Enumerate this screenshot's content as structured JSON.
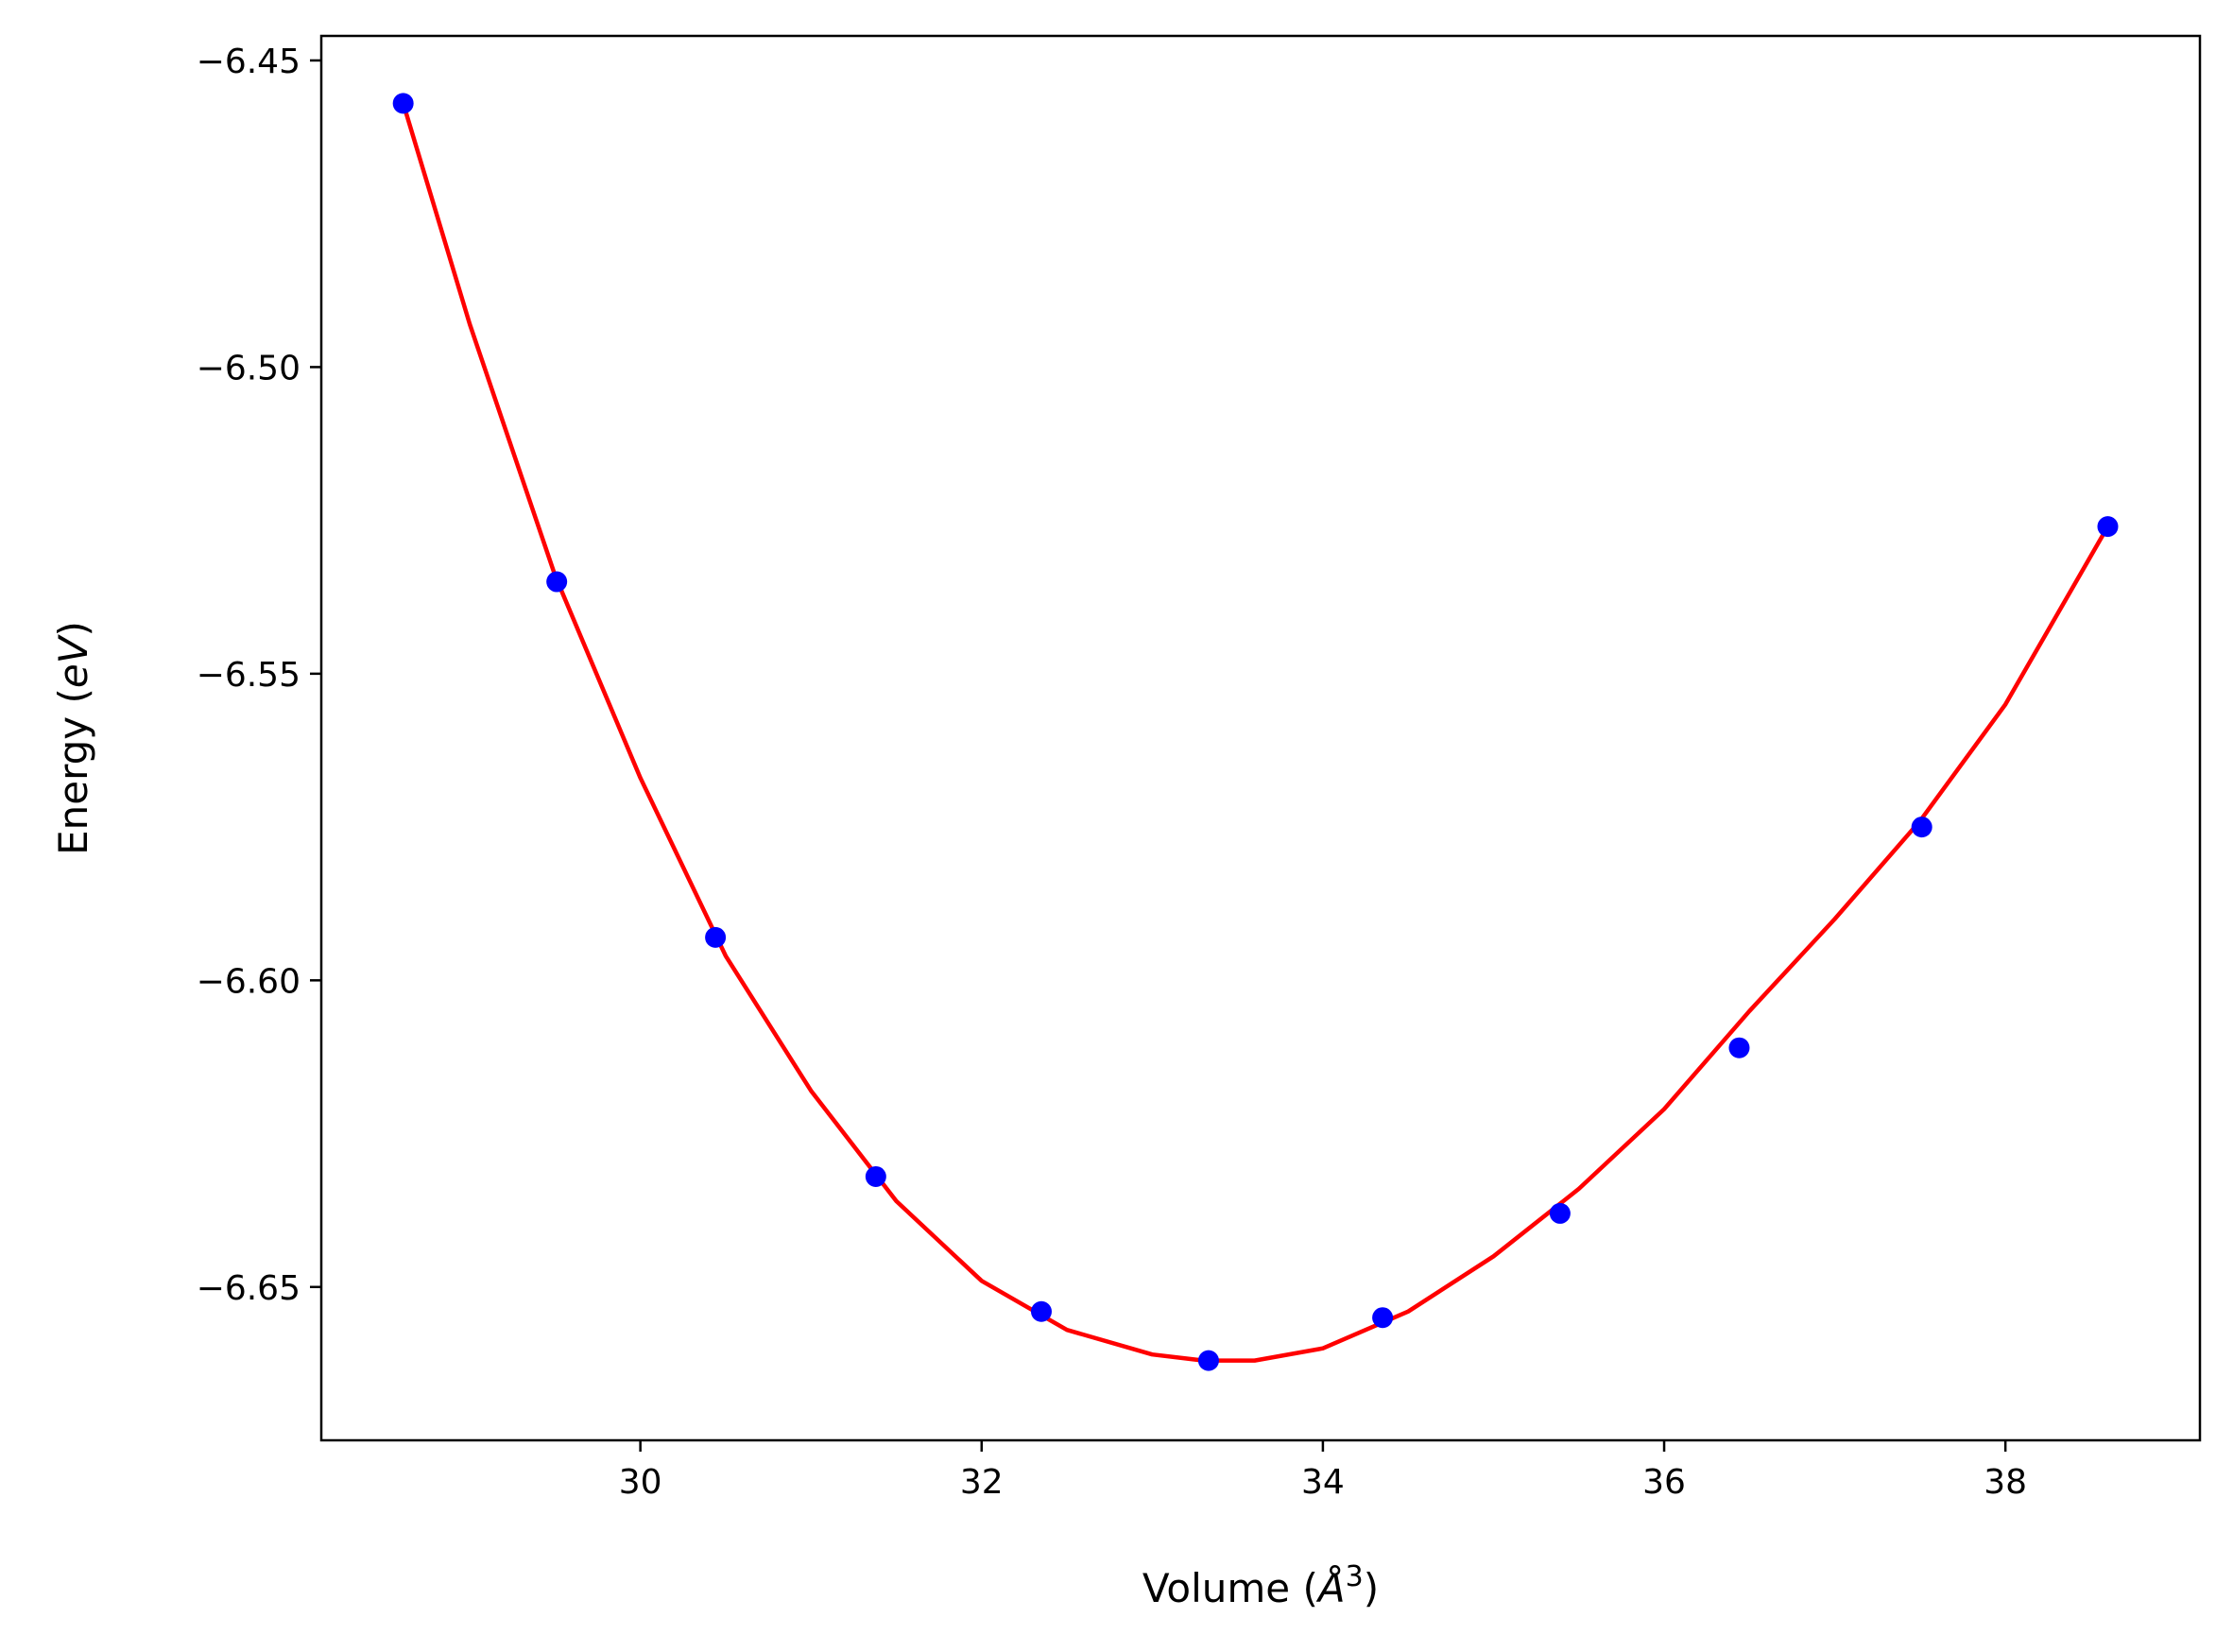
{
  "chart_data": {
    "type": "scatter",
    "title": "",
    "xlabel": {
      "prefix": "Volume (",
      "symbol": "Å",
      "sup": "3",
      "suffix": ")"
    },
    "ylabel": {
      "prefix": "Energy (",
      "symbol": "eV",
      "suffix": ")"
    },
    "xlim": [
      28.13,
      39.14
    ],
    "ylim": [
      -6.675,
      -6.446
    ],
    "xticks": [
      30,
      32,
      34,
      36,
      38
    ],
    "xtick_labels": [
      "30",
      "32",
      "34",
      "36",
      "38"
    ],
    "yticks": [
      -6.45,
      -6.5,
      -6.55,
      -6.6,
      -6.65
    ],
    "ytick_labels": [
      "−6.45",
      "−6.50",
      "−6.55",
      "−6.60",
      "−6.65"
    ],
    "grid": false,
    "series": [
      {
        "kind": "points",
        "color": "#0000ff",
        "x": [
          28.61,
          29.51,
          30.44,
          31.38,
          32.35,
          33.33,
          34.35,
          35.39,
          36.44,
          37.51,
          38.6
        ],
        "y": [
          -6.457,
          -6.535,
          -6.593,
          -6.632,
          -6.654,
          -6.662,
          -6.655,
          -6.638,
          -6.611,
          -6.575,
          -6.526
        ]
      },
      {
        "kind": "fit-curve",
        "color": "#ff0000",
        "x": [
          28.61,
          29.0,
          29.5,
          30.0,
          30.5,
          31.0,
          31.5,
          32.0,
          32.5,
          33.0,
          33.3,
          33.6,
          34.0,
          34.5,
          35.0,
          35.5,
          36.0,
          36.5,
          37.0,
          37.5,
          38.0,
          38.6
        ],
        "y": [
          -6.457,
          -6.493,
          -6.534,
          -6.567,
          -6.596,
          -6.618,
          -6.636,
          -6.649,
          -6.657,
          -6.661,
          -6.662,
          -6.662,
          -6.66,
          -6.654,
          -6.645,
          -6.634,
          -6.621,
          -6.605,
          -6.59,
          -6.574,
          -6.555,
          -6.526
        ]
      }
    ]
  }
}
